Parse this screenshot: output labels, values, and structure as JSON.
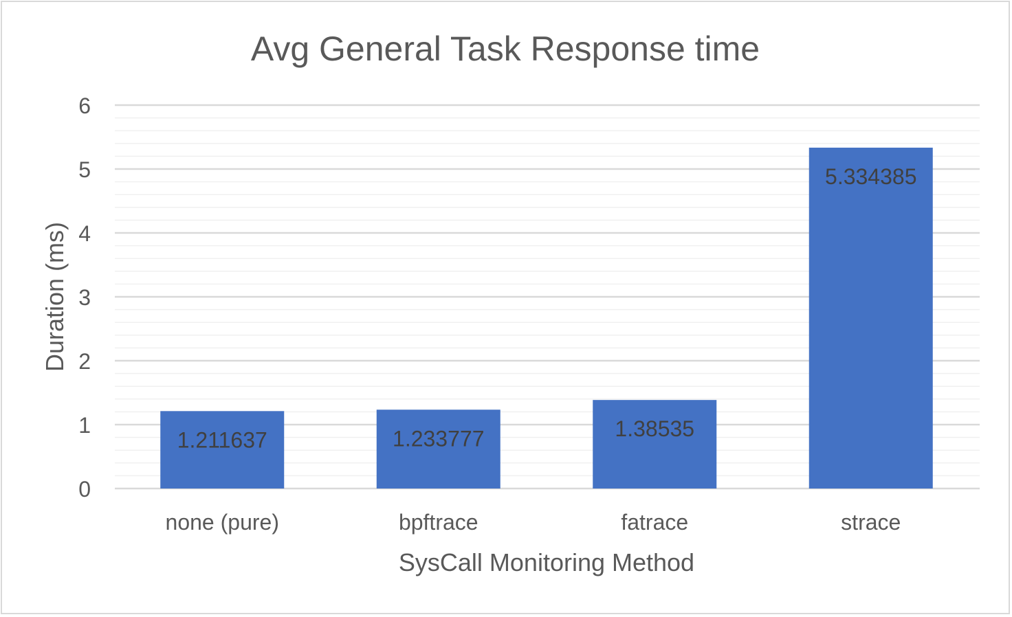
{
  "chart_data": {
    "type": "bar",
    "title": "Avg General Task Response time",
    "xlabel": "SysCall Monitoring  Method",
    "ylabel": "Duration (ms)",
    "categories": [
      "none (pure)",
      "bpftrace",
      "fatrace",
      "strace"
    ],
    "values": [
      1.211637,
      1.233777,
      1.38535,
      5.334385
    ],
    "data_labels": [
      "1.211637",
      "1.233777",
      "1.38535",
      "5.334385"
    ],
    "ylim": [
      0,
      6
    ],
    "yticks": [
      "0",
      "1",
      "2",
      "3",
      "4",
      "5",
      "6"
    ],
    "grid": true,
    "minor_grid": true,
    "legend": "none",
    "colors": {
      "bar": "#4472c4",
      "text": "#595959",
      "label": "#404040",
      "major_grid": "#d9d9d9",
      "minor_grid": "#f0f0f0",
      "frame": "#d9d9d9"
    }
  }
}
